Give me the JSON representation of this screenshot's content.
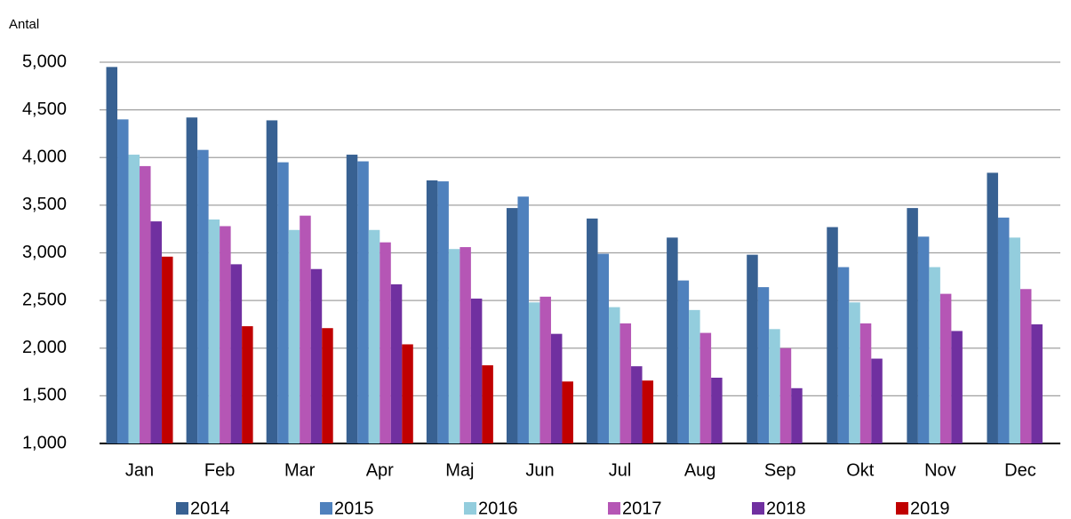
{
  "chart_data": {
    "type": "bar",
    "y_label": "Antal",
    "categories": [
      "Jan",
      "Feb",
      "Mar",
      "Apr",
      "Maj",
      "Jun",
      "Jul",
      "Aug",
      "Sep",
      "Okt",
      "Nov",
      "Dec"
    ],
    "series": [
      {
        "name": "2014",
        "color": "#386192",
        "values": [
          4950,
          4420,
          4390,
          4030,
          3760,
          3470,
          3360,
          3160,
          2980,
          3270,
          3470,
          3840
        ]
      },
      {
        "name": "2015",
        "color": "#4f81bd",
        "values": [
          4400,
          4080,
          3950,
          3960,
          3750,
          3590,
          2990,
          2710,
          2640,
          2850,
          3170,
          3370
        ]
      },
      {
        "name": "2016",
        "color": "#93cddd",
        "values": [
          4030,
          3350,
          3240,
          3240,
          3040,
          2480,
          2430,
          2400,
          2200,
          2480,
          2850,
          3160
        ]
      },
      {
        "name": "2017",
        "color": "#b556b5",
        "values": [
          3910,
          3280,
          3390,
          3110,
          3060,
          2540,
          2260,
          2160,
          2000,
          2260,
          2570,
          2620
        ]
      },
      {
        "name": "2018",
        "color": "#7030a0",
        "values": [
          3330,
          2880,
          2830,
          2670,
          2520,
          2150,
          1810,
          1690,
          1580,
          1890,
          2180,
          2250
        ]
      },
      {
        "name": "2019",
        "color": "#c00000",
        "values": [
          2960,
          2230,
          2210,
          2040,
          1820,
          1650,
          1660,
          null,
          null,
          null,
          null,
          null
        ]
      }
    ],
    "ylim": [
      1000,
      5000
    ],
    "yticks": [
      {
        "value": 1000,
        "label": "1,000"
      },
      {
        "value": 1500,
        "label": "1,500"
      },
      {
        "value": 2000,
        "label": "2,000"
      },
      {
        "value": 2500,
        "label": "2,500"
      },
      {
        "value": 3000,
        "label": "3,000"
      },
      {
        "value": 3500,
        "label": "3,500"
      },
      {
        "value": 4000,
        "label": "4,000"
      },
      {
        "value": 4500,
        "label": "4,500"
      },
      {
        "value": 5000,
        "label": "5,000"
      }
    ],
    "grid": true,
    "legend": "bottom"
  }
}
